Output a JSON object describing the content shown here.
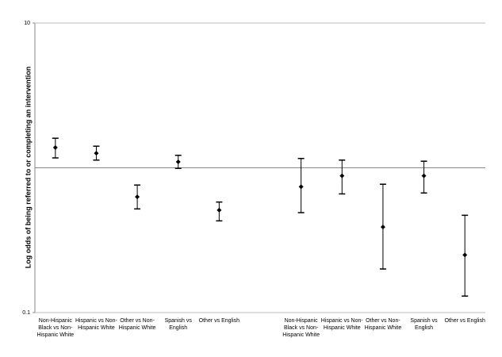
{
  "chart_data": {
    "type": "errorbar",
    "y_label": "Log odds of being referred to or completing an intervention",
    "categories": [
      "Non-Hispanic Black vs Non-Hispanic White",
      "Hispanic vs Non-Hispanic White",
      "Other vs Non-Hispanic White",
      "Spanish vs English",
      "Other vs English",
      null,
      "Non-Hispanic Black vs Non-Hispanic White",
      "Hispanic vs Non-Hispanic White",
      "Other vs Non-Hispanic White",
      "Spanish vs English",
      "Other vs English"
    ],
    "values": [
      1.38,
      1.26,
      0.63,
      1.1,
      0.51,
      null,
      0.74,
      0.88,
      0.39,
      0.88,
      0.25
    ],
    "upper": [
      1.6,
      1.41,
      0.76,
      1.22,
      0.58,
      null,
      1.16,
      1.13,
      0.77,
      1.11,
      0.47
    ],
    "lower": [
      1.17,
      1.13,
      0.52,
      0.99,
      0.43,
      null,
      0.49,
      0.66,
      0.2,
      0.67,
      0.13
    ],
    "color": "#000000",
    "ylim": [
      0.1,
      10
    ],
    "yticks": [
      0.1,
      10
    ],
    "log_scale": true,
    "x_axis_at": 1,
    "grid": true
  }
}
